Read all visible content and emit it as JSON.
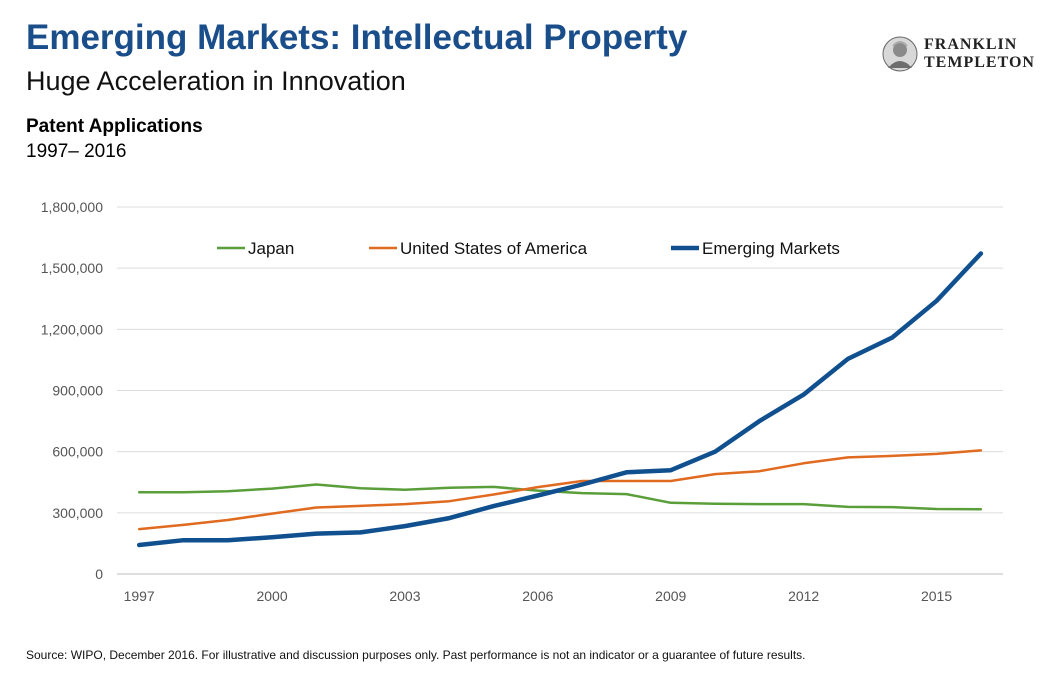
{
  "header": {
    "title": "Emerging Markets: Intellectual Property",
    "subtitle": "Huge Acceleration in Innovation"
  },
  "logo": {
    "line1": "FRANKLIN",
    "line2": "TEMPLETON",
    "icon": "franklin-portrait-icon"
  },
  "footer": {
    "source": "Source: WIPO, December 2016. For illustrative and discussion purposes only. Past performance is not an indicator or a guarantee of future results."
  },
  "chart_data": {
    "type": "line",
    "title": "Patent Applications",
    "subtitle": "1997– 2016",
    "xlabel": "",
    "ylabel": "",
    "x": [
      1997,
      1998,
      1999,
      2000,
      2001,
      2002,
      2003,
      2004,
      2005,
      2006,
      2007,
      2008,
      2009,
      2010,
      2011,
      2012,
      2013,
      2014,
      2015,
      2016
    ],
    "x_ticks": [
      "1997",
      "2000",
      "2003",
      "2006",
      "2009",
      "2012",
      "2015"
    ],
    "y_ticks": [
      "0",
      "300,000",
      "600,000",
      "900,000",
      "1,200,000",
      "1,500,000",
      "1,800,000"
    ],
    "ylim": [
      0,
      1800000
    ],
    "grid": "horizontal",
    "legend_position": "top",
    "series": [
      {
        "name": "Japan",
        "color": "#5a9e3a",
        "width": 2.5,
        "values": [
          401000,
          401000,
          406000,
          419000,
          439000,
          421000,
          413000,
          423000,
          427000,
          409000,
          397000,
          392000,
          349000,
          345000,
          343000,
          343000,
          329000,
          328000,
          319000,
          318000
        ]
      },
      {
        "name": "United States of America",
        "color": "#e06a1f",
        "width": 2.5,
        "values": [
          220000,
          241000,
          265000,
          296000,
          326000,
          334000,
          343000,
          357000,
          390000,
          426000,
          456000,
          456000,
          456000,
          490000,
          504000,
          543000,
          572000,
          579000,
          589000,
          606000
        ]
      },
      {
        "name": "Emerging Markets",
        "color": "#10508f",
        "width": 4.5,
        "values": [
          142000,
          166000,
          166000,
          180000,
          198000,
          204000,
          235000,
          274000,
          333000,
          385000,
          439000,
          499000,
          509000,
          600000,
          750000,
          880000,
          1055000,
          1160000,
          1340000,
          1572000
        ]
      }
    ]
  }
}
